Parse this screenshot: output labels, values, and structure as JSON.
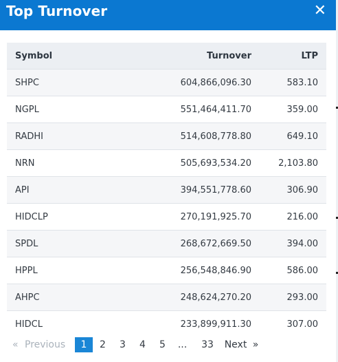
{
  "header": {
    "title": "Top Turnover",
    "close_icon": "close-icon"
  },
  "table": {
    "columns": [
      "Symbol",
      "Turnover",
      "LTP"
    ],
    "rows": [
      [
        "SHPC",
        "604,866,096.30",
        "583.10"
      ],
      [
        "NGPL",
        "551,464,411.70",
        "359.00"
      ],
      [
        "RADHI",
        "514,608,778.80",
        "649.10"
      ],
      [
        "NRN",
        "505,693,534.20",
        "2,103.80"
      ],
      [
        "API",
        "394,551,778.60",
        "306.90"
      ],
      [
        "HIDCLP",
        "270,191,925.70",
        "216.00"
      ],
      [
        "SPDL",
        "268,672,669.50",
        "394.00"
      ],
      [
        "HPPL",
        "256,548,846.90",
        "586.00"
      ],
      [
        "AHPC",
        "248,624,270.20",
        "293.00"
      ],
      [
        "HIDCL",
        "233,899,911.30",
        "307.00"
      ]
    ]
  },
  "pagination": {
    "prev_arrow": "«",
    "previous": "Previous",
    "pages": [
      "1",
      "2",
      "3",
      "4",
      "5"
    ],
    "ellipsis": "...",
    "last": "33",
    "next": "Next",
    "next_arrow": "»",
    "active_page": "1"
  },
  "colors": {
    "header_bg": "#0b78d1",
    "active_page_bg": "#1a86d6"
  }
}
